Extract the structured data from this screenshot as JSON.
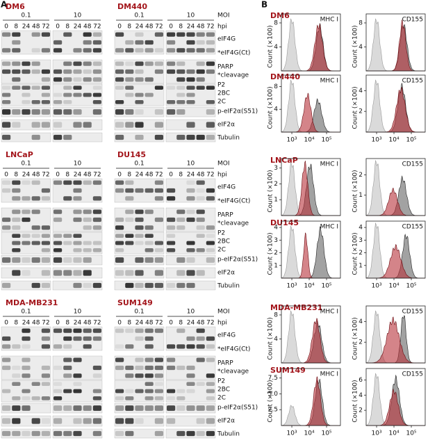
{
  "panel_a": {
    "label": "A",
    "blots": [
      {
        "cell_line": "DM6"
      },
      {
        "cell_line": "DM440"
      },
      {
        "cell_line": "LNCaP"
      },
      {
        "cell_line": "DU145"
      },
      {
        "cell_line": "MDA-MB231"
      },
      {
        "cell_line": "SUM149"
      }
    ],
    "moi": [
      "0.1",
      "10"
    ],
    "hpi": [
      "0",
      "8",
      "24",
      "48",
      "72"
    ],
    "row_labels": [
      "MOI",
      "hpi",
      "eIF4G",
      "*eIF4G(Ct)",
      "PARP",
      "*cleavage",
      "P2",
      "2BC",
      "2C",
      "p-eIF2α(S51)",
      "eIF2α",
      "Tubulin"
    ]
  },
  "panel_b": {
    "label": "B",
    "y_label": "Count (×100)",
    "xlim": [
      250,
      630000
    ],
    "xticks": [
      {
        "value": 1000,
        "label": "10³"
      },
      {
        "value": 10000,
        "label": "10⁴"
      },
      {
        "value": 100000,
        "label": "10⁵"
      }
    ],
    "rows": [
      {
        "cell_line": "DM6",
        "plots": [
          {
            "label": "MHC I",
            "ylim": [
              0,
              9.5
            ],
            "yticks": [
              4,
              8
            ]
          },
          {
            "label": "CD155",
            "ylim": [
              0,
              9.5
            ],
            "yticks": [
              4,
              8
            ]
          }
        ]
      },
      {
        "cell_line": "DM440",
        "plots": [
          {
            "label": "MHC I",
            "ylim": [
              0,
              10
            ],
            "yticks": [
              4,
              8
            ]
          },
          {
            "label": "CD155",
            "ylim": [
              0,
              5.5
            ],
            "yticks": [
              2,
              4
            ]
          }
        ]
      },
      {
        "cell_line": "LNCaP",
        "plots": [
          {
            "label": "MHC I",
            "ylim": [
              0,
              3.6
            ],
            "yticks": [
              1,
              2,
              3
            ]
          },
          {
            "label": "CD155",
            "ylim": [
              0,
              2.8
            ],
            "yticks": [
              1,
              2
            ]
          }
        ]
      },
      {
        "cell_line": "DU145",
        "plots": [
          {
            "label": "MHC I",
            "ylim": [
              0,
              4.5
            ],
            "yticks": [
              1,
              2,
              3,
              4
            ]
          },
          {
            "label": "CD155",
            "ylim": [
              0,
              4.5
            ],
            "yticks": [
              1,
              2,
              3,
              4
            ]
          }
        ]
      },
      {
        "cell_line": "MDA-MB231",
        "plots": [
          {
            "label": "MHC I",
            "ylim": [
              0,
              9.5
            ],
            "yticks": [
              4,
              8
            ]
          },
          {
            "label": "CD155",
            "ylim": [
              0,
              5.5
            ],
            "yticks": [
              2,
              4
            ]
          }
        ]
      },
      {
        "cell_line": "SUM149",
        "plots": [
          {
            "label": "MHC I",
            "ylim": [
              0,
              9
            ],
            "yticks": [
              2.5,
              {
                "value": 5,
                "label": "5.0"
              },
              7.5
            ]
          },
          {
            "label": "CD155",
            "ylim": [
              0,
              7.5
            ],
            "yticks": [
              2,
              4,
              6
            ]
          }
        ]
      }
    ]
  }
}
